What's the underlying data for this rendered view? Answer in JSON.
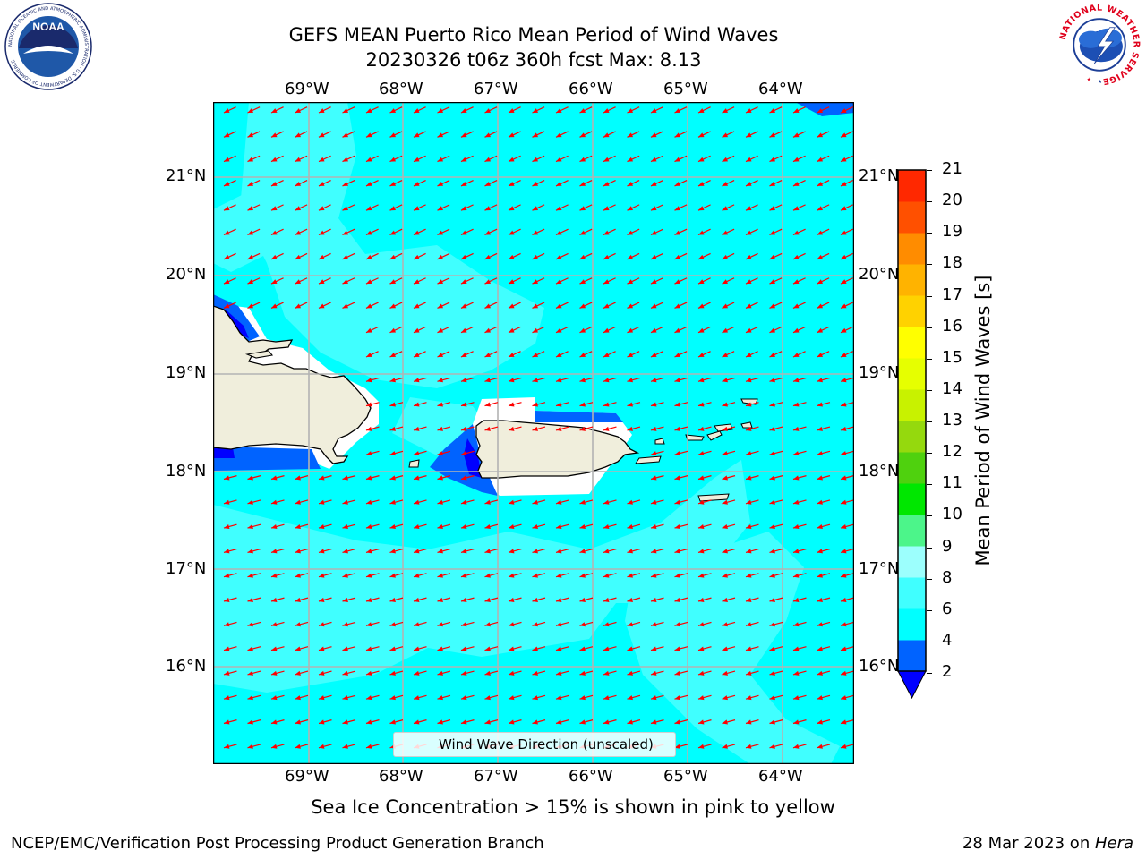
{
  "header": {
    "title_line1": "GEFS MEAN Puerto Rico Mean Period of Wind Waves",
    "title_line2": "20230326 t06z 360h fcst   Max: 8.13"
  },
  "logos": {
    "left": "NOAA",
    "left_ring_text": "NATIONAL OCEANIC AND ATMOSPHERIC ADMINISTRATION · U.S. DEPARTMENT OF COMMERCE",
    "right_ring_text": "NATIONAL WEATHER SERVICE"
  },
  "map": {
    "lon_labels": [
      "69°W",
      "68°W",
      "67°W",
      "66°W",
      "65°W",
      "64°W"
    ],
    "lat_labels": [
      "21°N",
      "20°N",
      "19°N",
      "18°N",
      "17°N",
      "16°N"
    ],
    "legend_label": "Wind Wave Direction (unscaled)",
    "arrow_color": "#ff0000",
    "land_color": "#f0eedc"
  },
  "colorbar": {
    "label": "Mean Period of Wind Waves [s]",
    "ticks": [
      "2",
      "4",
      "6",
      "8",
      "9",
      "10",
      "11",
      "12",
      "13",
      "14",
      "15",
      "16",
      "17",
      "18",
      "19",
      "20",
      "21"
    ],
    "colors": [
      "#0063ff",
      "#00ffff",
      "#40ffff",
      "#9cfffd",
      "#4cf58a",
      "#00e700",
      "#4fd10e",
      "#95d90d",
      "#c8f200",
      "#e6ff00",
      "#ffff00",
      "#ffd200",
      "#ffb300",
      "#ff8c00",
      "#ff5000",
      "#ff2800",
      "#ff0000"
    ],
    "under_color": "#0000ff"
  },
  "subtitle": "Sea Ice Concentration > 15% is shown in pink to yellow",
  "footer": {
    "left": "NCEP/EMC/Verification Post Processing Product Generation Branch",
    "date": "28 Mar 2023 on ",
    "machine": "Hera"
  }
}
